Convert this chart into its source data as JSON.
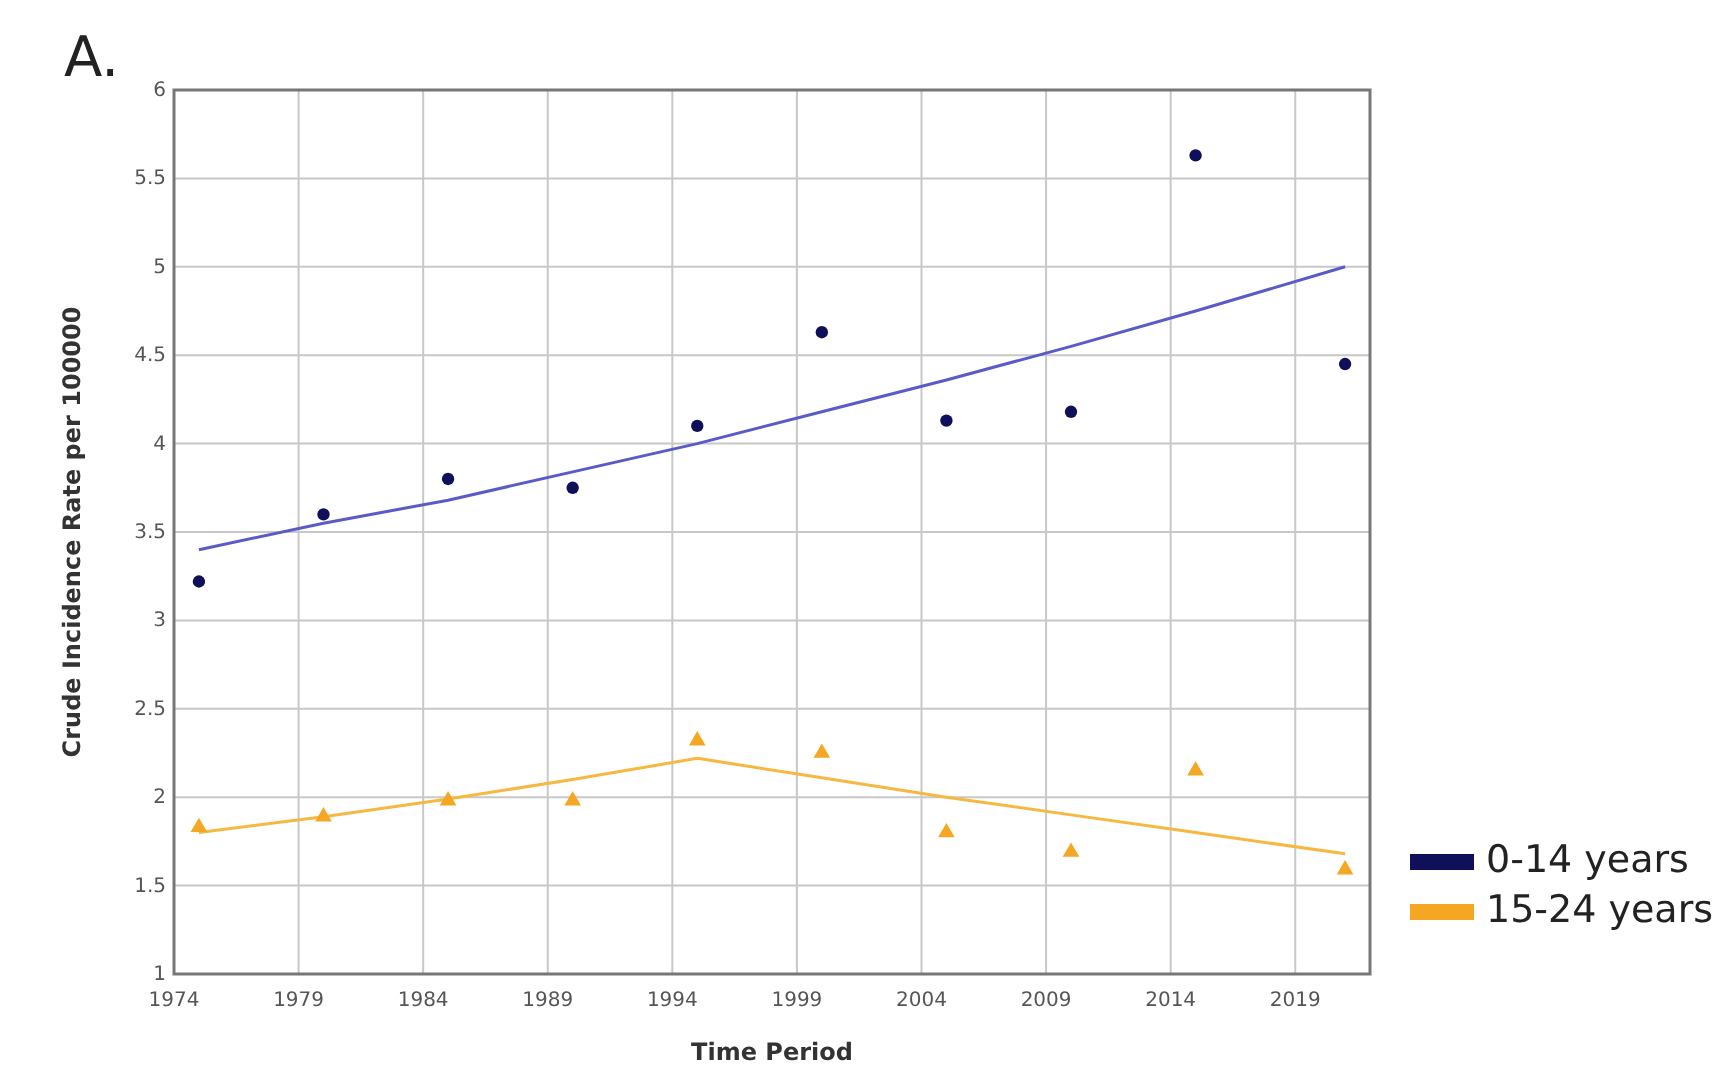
{
  "chart_data": {
    "type": "scatter",
    "title": "A.",
    "xlabel": "Time Period",
    "ylabel": "Crude Incidence Rate per 100000",
    "x": [
      1975,
      1980,
      1985,
      1990,
      1995,
      2000,
      2005,
      2010,
      2015,
      2021
    ],
    "series": [
      {
        "name": "0-14 years",
        "marker": "circle",
        "color": "#10105a",
        "values": [
          3.22,
          3.6,
          3.8,
          3.75,
          4.1,
          4.63,
          4.13,
          4.18,
          5.63,
          4.45
        ]
      },
      {
        "name": "15-24 years",
        "marker": "triangle",
        "color": "#f5a623",
        "values": [
          1.83,
          1.89,
          1.98,
          1.98,
          2.32,
          2.25,
          1.8,
          1.69,
          2.15,
          1.59
        ]
      },
      {
        "type": "line",
        "color": "#5a5ac8",
        "values": [
          3.4,
          3.55,
          3.68,
          3.84,
          4.0,
          4.18,
          4.36,
          4.55,
          4.75,
          5.0
        ]
      },
      {
        "type": "line",
        "color": "#f5b840",
        "values": [
          1.8,
          1.89,
          1.99,
          2.1,
          2.22,
          2.11,
          2.0,
          1.9,
          1.8,
          1.68
        ]
      }
    ],
    "xlim": [
      1974,
      2022
    ],
    "xticks": [
      1974,
      1979,
      1984,
      1989,
      1994,
      1999,
      2004,
      2009,
      2014,
      2019
    ],
    "ylim": [
      1,
      6
    ],
    "yticks": [
      1,
      1.5,
      2,
      2.5,
      3,
      3.5,
      4,
      4.5,
      5,
      5.5,
      6
    ],
    "grid": true,
    "legend": "right"
  }
}
